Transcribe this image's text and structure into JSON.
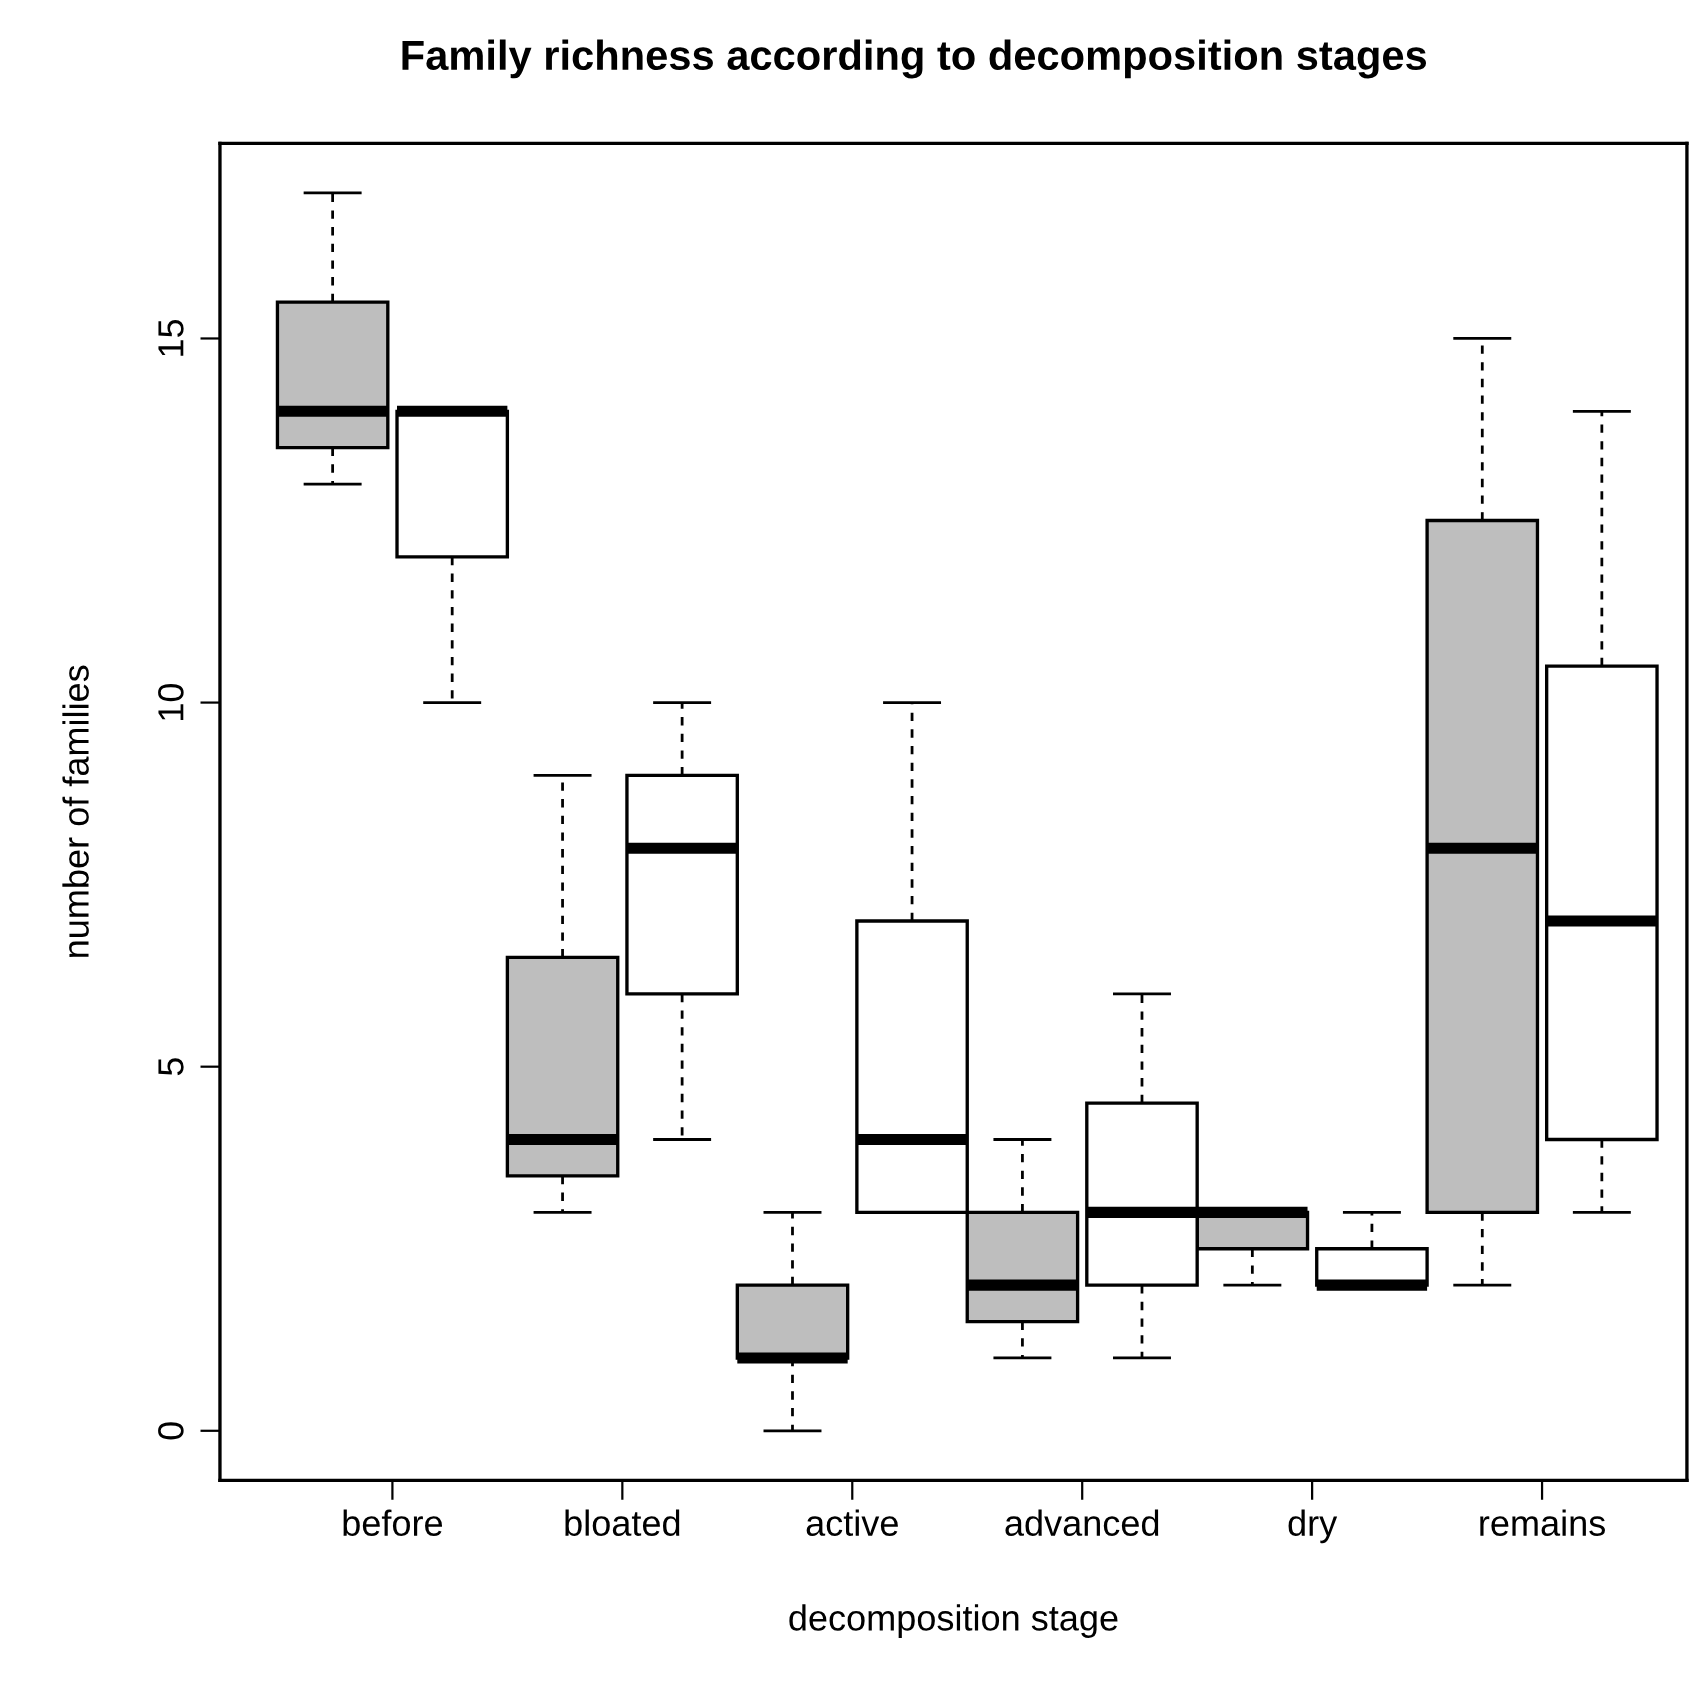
{
  "chart_data": {
    "type": "box",
    "title": "Family richness according to decomposition stages",
    "xlabel": "decomposition stage",
    "ylabel": "number of families",
    "categories": [
      "before",
      "bloated",
      "active",
      "advanced",
      "dry",
      "remains"
    ],
    "series": [
      {
        "color": "#bebebe",
        "boxes": [
          {
            "low": 13,
            "q1": 13.5,
            "median": 14,
            "q3": 15.5,
            "high": 17
          },
          {
            "low": 3,
            "q1": 3.5,
            "median": 4,
            "q3": 6.5,
            "high": 9
          },
          {
            "low": 0,
            "q1": 1,
            "median": 1,
            "q3": 2,
            "high": 3
          },
          {
            "low": 1,
            "q1": 1.5,
            "median": 2,
            "q3": 3,
            "high": 4
          },
          {
            "low": 2,
            "q1": 2.5,
            "median": 3,
            "q3": 3,
            "high": 3
          },
          {
            "low": 2,
            "q1": 3,
            "median": 8,
            "q3": 12.5,
            "high": 15
          }
        ]
      },
      {
        "color": "#ffffff",
        "boxes": [
          {
            "low": 10,
            "q1": 12,
            "median": 14,
            "q3": 14,
            "high": 14
          },
          {
            "low": 4,
            "q1": 6,
            "median": 8,
            "q3": 9,
            "high": 10
          },
          {
            "low": 3,
            "q1": 3,
            "median": 4,
            "q3": 7,
            "high": 10
          },
          {
            "low": 1,
            "q1": 2,
            "median": 3,
            "q3": 4.5,
            "high": 6
          },
          {
            "low": 2,
            "q1": 2,
            "median": 2,
            "q3": 2.5,
            "high": 3
          },
          {
            "low": 3,
            "q1": 4,
            "median": 7,
            "q3": 10.5,
            "high": 14
          }
        ]
      }
    ],
    "ylim": [
      -0.68,
      17.68
    ],
    "yticks": [
      0,
      5,
      10,
      15
    ],
    "grid": false,
    "legend": false
  }
}
